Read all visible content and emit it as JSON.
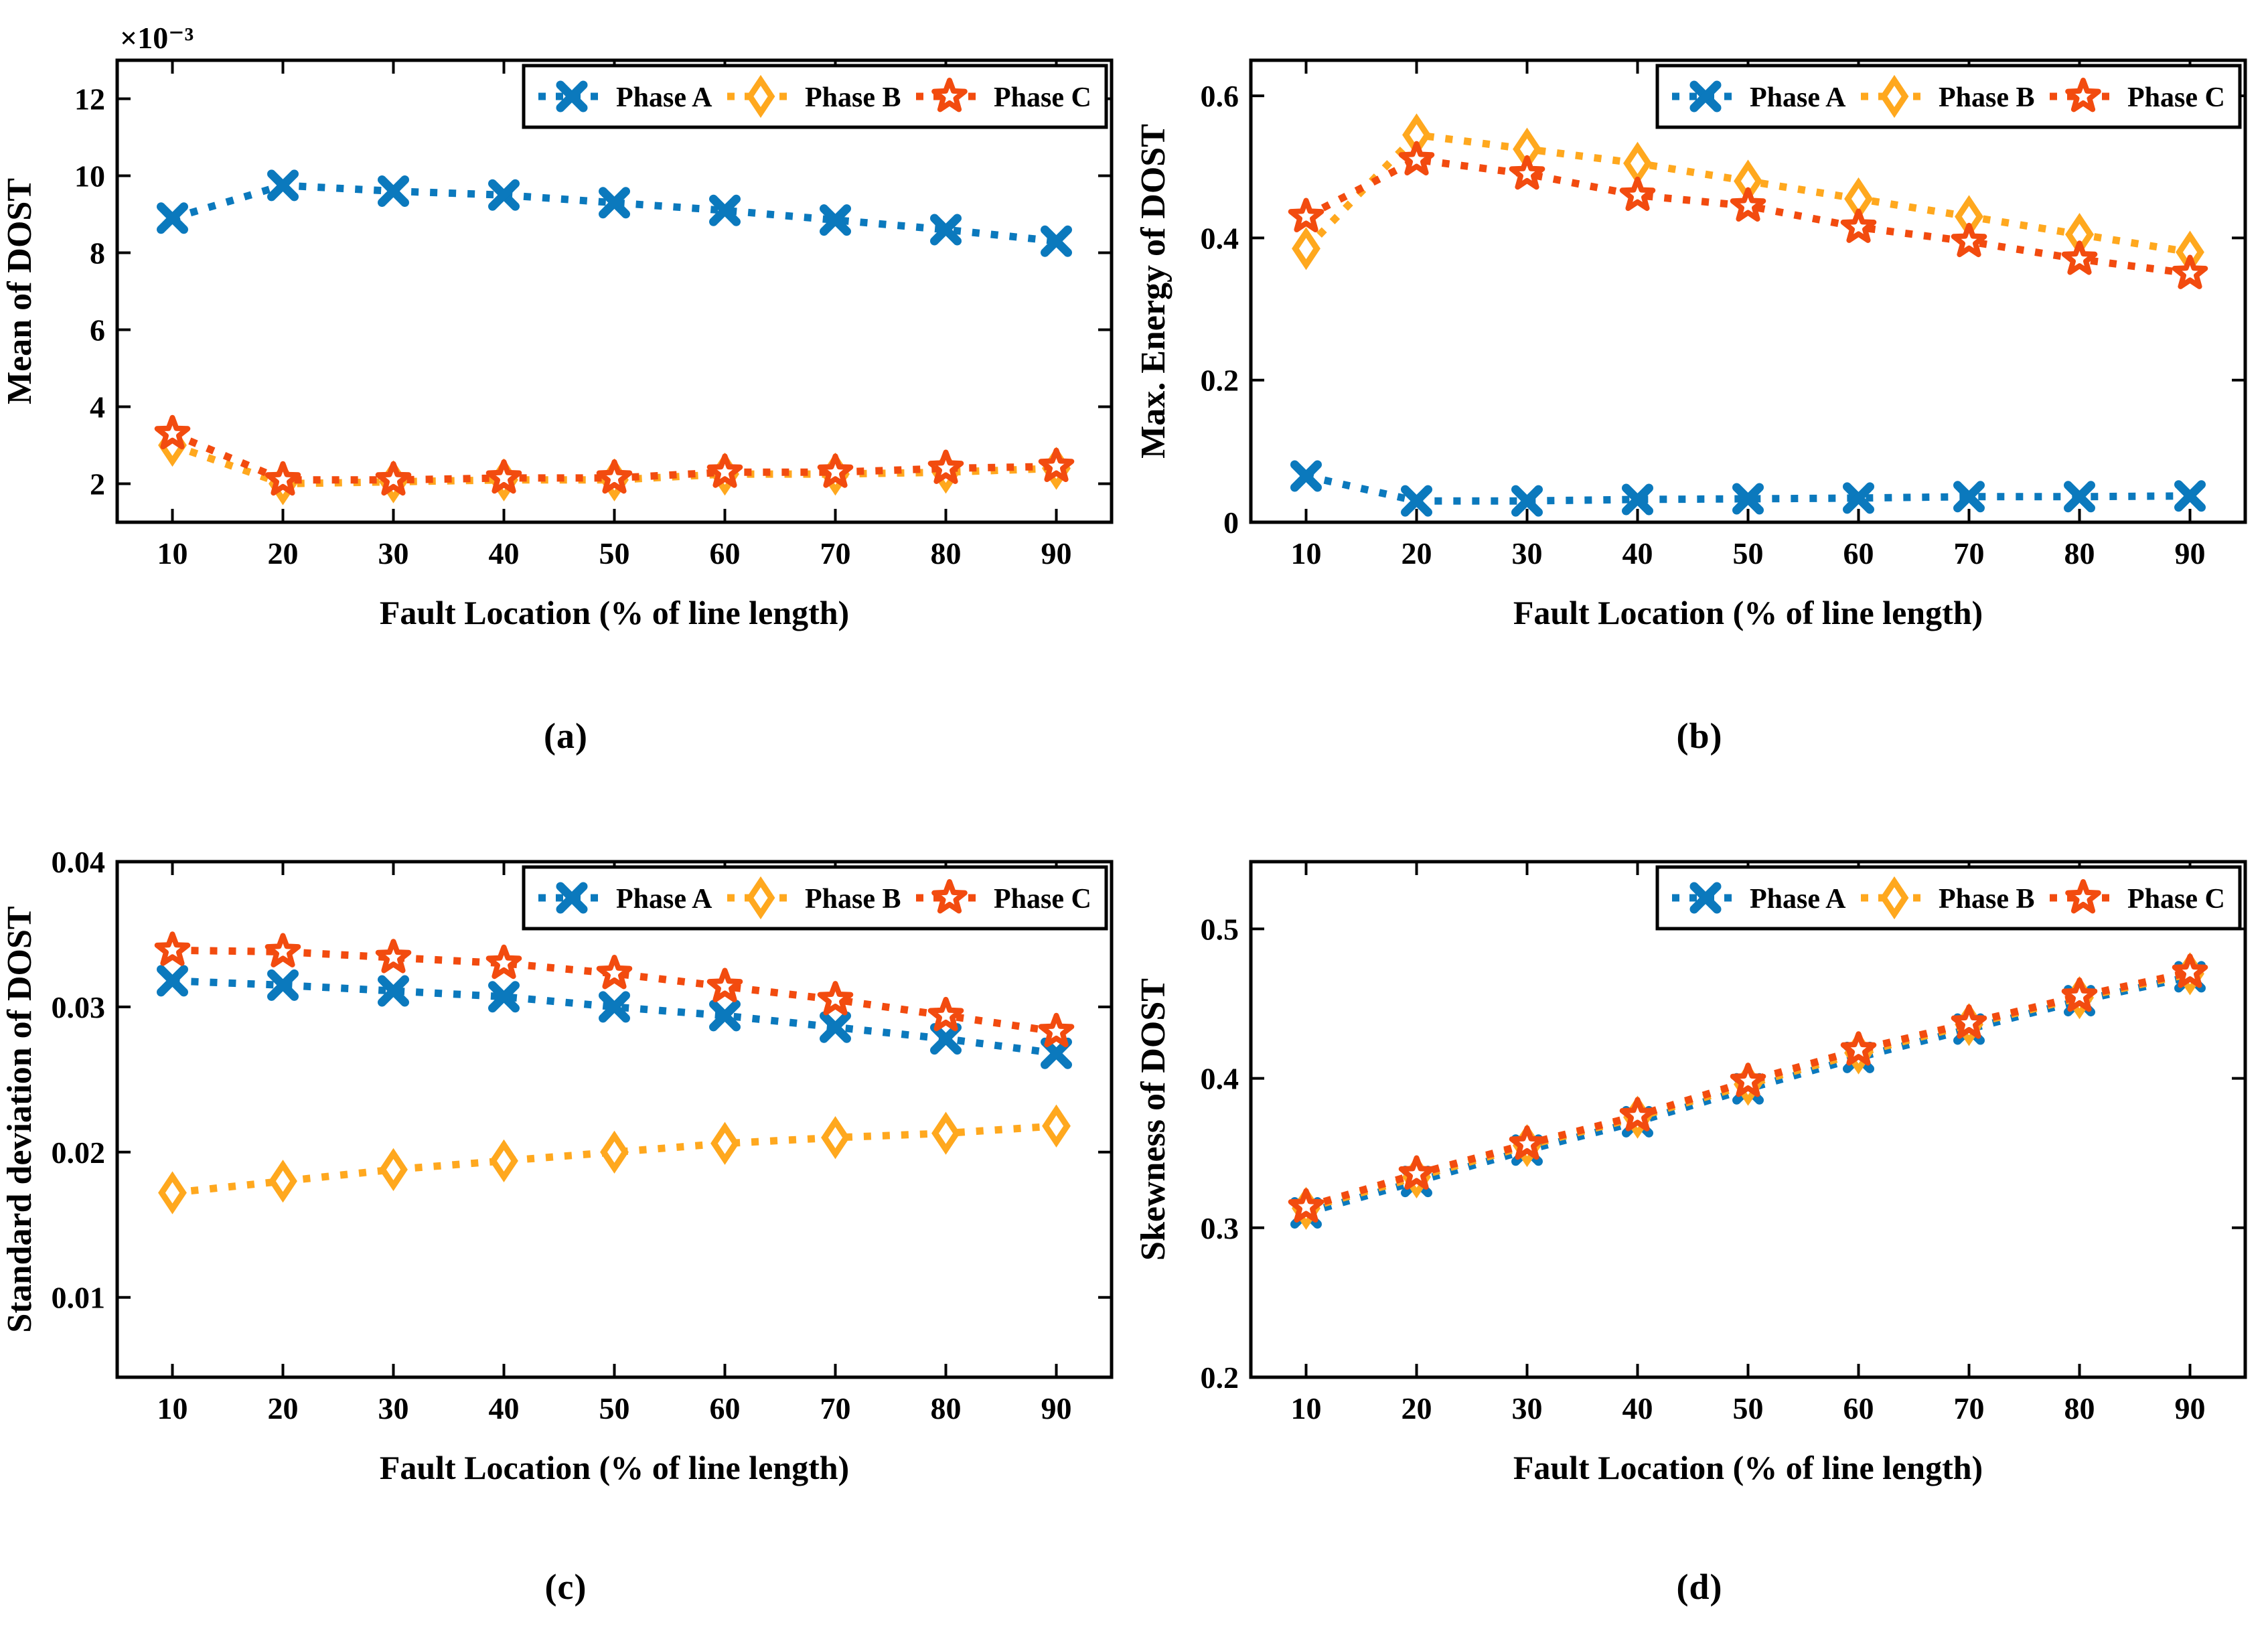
{
  "figure": {
    "background": "#ffffff"
  },
  "colors": {
    "phase_a": "#0B79BD",
    "phase_b": "#FFA81E",
    "phase_c": "#F24B0F",
    "axis": "#000000",
    "legend_border": "#000000",
    "plot_background": "#ffffff"
  },
  "chart_data": [
    {
      "id": "a",
      "row": 0,
      "type": "line",
      "caption": "(a)",
      "xlabel": "Fault Location (% of line length)",
      "ylabel": "Mean of  DOST",
      "exponent_label": "×10⁻³",
      "grid": false,
      "legend_position": "top-right",
      "x": [
        10,
        20,
        30,
        40,
        50,
        60,
        70,
        80,
        90
      ],
      "xtick_labels": [
        "10",
        "20",
        "30",
        "40",
        "50",
        "60",
        "70",
        "80",
        "90"
      ],
      "xlim": [
        5,
        95
      ],
      "ylim": [
        1,
        13
      ],
      "ytick_values": [
        2,
        4,
        6,
        8,
        10,
        12
      ],
      "ytick_labels": [
        "2",
        "4",
        "6",
        "8",
        "10",
        "12"
      ],
      "series": [
        {
          "name": "Phase A",
          "color": "phase_a",
          "marker": "x",
          "values": [
            8.9,
            9.75,
            9.6,
            9.5,
            9.3,
            9.1,
            8.85,
            8.6,
            8.3
          ]
        },
        {
          "name": "Phase B",
          "color": "phase_b",
          "marker": "diamond",
          "values": [
            3.0,
            2.0,
            2.05,
            2.1,
            2.1,
            2.25,
            2.25,
            2.3,
            2.4
          ]
        },
        {
          "name": "Phase C",
          "color": "phase_c",
          "marker": "pentagram",
          "values": [
            3.3,
            2.1,
            2.1,
            2.15,
            2.15,
            2.3,
            2.3,
            2.4,
            2.45
          ]
        }
      ]
    },
    {
      "id": "b",
      "row": 0,
      "type": "line",
      "caption": "(b)",
      "xlabel": "Fault Location (% of line length)",
      "ylabel": "Max. Energy of DOST",
      "exponent_label": "",
      "grid": false,
      "legend_position": "top-right",
      "x": [
        10,
        20,
        30,
        40,
        50,
        60,
        70,
        80,
        90
      ],
      "xtick_labels": [
        "10",
        "20",
        "30",
        "40",
        "50",
        "60",
        "70",
        "80",
        "90"
      ],
      "xlim": [
        5,
        95
      ],
      "ylim": [
        0,
        0.65
      ],
      "ytick_values": [
        0,
        0.2,
        0.4,
        0.6
      ],
      "ytick_labels": [
        "0",
        "0.2",
        "0.4",
        "0.6"
      ],
      "series": [
        {
          "name": "Phase A",
          "color": "phase_a",
          "marker": "x",
          "values": [
            0.065,
            0.03,
            0.03,
            0.032,
            0.033,
            0.034,
            0.036,
            0.036,
            0.037
          ]
        },
        {
          "name": "Phase B",
          "color": "phase_b",
          "marker": "diamond",
          "values": [
            0.385,
            0.545,
            0.525,
            0.505,
            0.48,
            0.455,
            0.43,
            0.405,
            0.38
          ]
        },
        {
          "name": "Phase C",
          "color": "phase_c",
          "marker": "pentagram",
          "values": [
            0.43,
            0.51,
            0.49,
            0.46,
            0.445,
            0.415,
            0.395,
            0.37,
            0.35
          ]
        }
      ]
    },
    {
      "id": "c",
      "row": 1,
      "type": "line",
      "caption": "(c)",
      "xlabel": "Fault Location (% of line length)",
      "ylabel": "Standard deviation of DOST",
      "exponent_label": "",
      "grid": false,
      "legend_position": "top-right",
      "x": [
        10,
        20,
        30,
        40,
        50,
        60,
        70,
        80,
        90
      ],
      "xtick_labels": [
        "10",
        "20",
        "30",
        "40",
        "50",
        "60",
        "70",
        "80",
        "90"
      ],
      "xlim": [
        5,
        95
      ],
      "ylim": [
        0.0045,
        0.04
      ],
      "ytick_values": [
        0.01,
        0.02,
        0.03,
        0.04
      ],
      "ytick_labels": [
        "0.01",
        "0.02",
        "0.03",
        "0.04"
      ],
      "series": [
        {
          "name": "Phase A",
          "color": "phase_a",
          "marker": "x",
          "values": [
            0.0318,
            0.0315,
            0.0311,
            0.0307,
            0.03,
            0.0294,
            0.0286,
            0.0278,
            0.0268
          ]
        },
        {
          "name": "Phase B",
          "color": "phase_b",
          "marker": "diamond",
          "values": [
            0.0172,
            0.018,
            0.0188,
            0.0194,
            0.02,
            0.0206,
            0.021,
            0.0213,
            0.0218
          ]
        },
        {
          "name": "Phase C",
          "color": "phase_c",
          "marker": "pentagram",
          "values": [
            0.0339,
            0.0338,
            0.0334,
            0.033,
            0.0323,
            0.0314,
            0.0305,
            0.0294,
            0.0283
          ]
        }
      ]
    },
    {
      "id": "d",
      "row": 1,
      "type": "line",
      "caption": "(d)",
      "xlabel": "Fault Location (% of line length)",
      "ylabel": "Skewness of DOST",
      "exponent_label": "",
      "grid": false,
      "legend_position": "top-right",
      "x": [
        10,
        20,
        30,
        40,
        50,
        60,
        70,
        80,
        90
      ],
      "xtick_labels": [
        "10",
        "20",
        "30",
        "40",
        "50",
        "60",
        "70",
        "80",
        "90"
      ],
      "xlim": [
        5,
        95
      ],
      "ylim": [
        0.2,
        0.545
      ],
      "ytick_values": [
        0.2,
        0.3,
        0.4,
        0.5
      ],
      "ytick_labels": [
        "0.2",
        "0.3",
        "0.4",
        "0.5"
      ],
      "series": [
        {
          "name": "Phase A",
          "color": "phase_a",
          "marker": "x",
          "values": [
            0.31,
            0.331,
            0.352,
            0.371,
            0.393,
            0.414,
            0.433,
            0.452,
            0.468
          ]
        },
        {
          "name": "Phase B",
          "color": "phase_b",
          "marker": "diamond",
          "values": [
            0.313,
            0.334,
            0.355,
            0.374,
            0.396,
            0.417,
            0.436,
            0.454,
            0.47
          ]
        },
        {
          "name": "Phase C",
          "color": "phase_c",
          "marker": "pentagram",
          "values": [
            0.314,
            0.336,
            0.356,
            0.375,
            0.398,
            0.419,
            0.437,
            0.455,
            0.471
          ]
        }
      ]
    }
  ]
}
